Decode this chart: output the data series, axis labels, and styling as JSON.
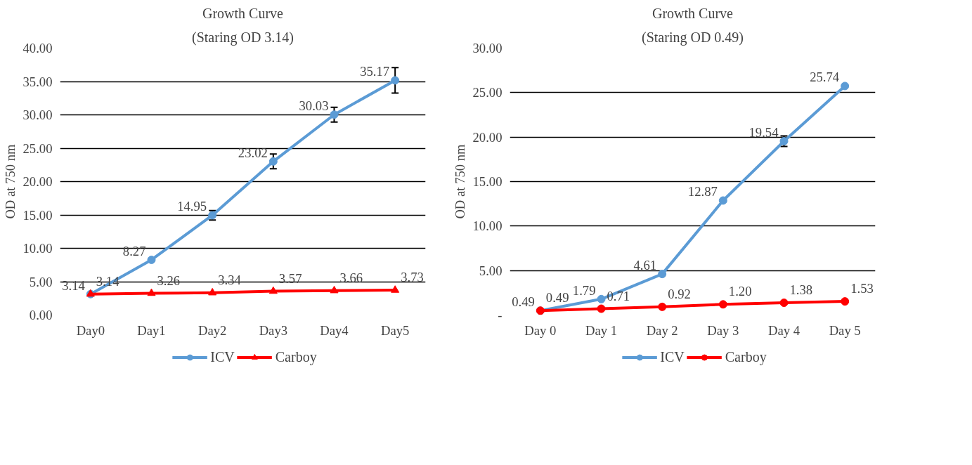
{
  "chart_data": [
    {
      "type": "line",
      "title": "Growth Curve",
      "subtitle": "(Staring OD 3.14)",
      "ylabel": "OD at 750 nm",
      "categories": [
        "Day0",
        "Day1",
        "Day2",
        "Day3",
        "Day4",
        "Day5"
      ],
      "ylim": [
        0,
        40
      ],
      "yticks": [
        {
          "value": 0,
          "label": "0.00"
        },
        {
          "value": 5,
          "label": "5.00"
        },
        {
          "value": 10,
          "label": "10.00"
        },
        {
          "value": 15,
          "label": "15.00"
        },
        {
          "value": 20,
          "label": "20.00"
        },
        {
          "value": 25,
          "label": "25.00"
        },
        {
          "value": 30,
          "label": "30.00"
        },
        {
          "value": 35,
          "label": "35.00"
        },
        {
          "value": 40,
          "label": "40.00"
        }
      ],
      "grid": "y",
      "legend": "bottom",
      "series": [
        {
          "name": "ICV",
          "color": "#5b9bd5",
          "marker": "circle",
          "values": [
            3.14,
            8.27,
            14.95,
            23.02,
            30.03,
            35.17
          ],
          "errors": [
            null,
            null,
            0.7,
            1.1,
            1.1,
            1.9
          ],
          "value_labels": [
            "3.14",
            "8.27",
            "14.95",
            "23.02",
            "30.03",
            "35.17"
          ]
        },
        {
          "name": "Carboy",
          "color": "#ff0000",
          "marker": "triangle",
          "values": [
            3.14,
            3.26,
            3.34,
            3.57,
            3.66,
            3.73
          ],
          "value_labels": [
            "3.14",
            "3.26",
            "3.34",
            "3.57",
            "3.66",
            "3.73"
          ]
        }
      ]
    },
    {
      "type": "line",
      "title": "Growth Curve",
      "subtitle": "(Staring OD 0.49)",
      "ylabel": "OD at 750 nm",
      "categories": [
        "Day 0",
        "Day 1",
        "Day 2",
        "Day 3",
        "Day 4",
        "Day 5"
      ],
      "ylim": [
        0,
        30
      ],
      "yticks": [
        {
          "value": 0,
          "label": "-"
        },
        {
          "value": 5,
          "label": "5.00"
        },
        {
          "value": 10,
          "label": "10.00"
        },
        {
          "value": 15,
          "label": "15.00"
        },
        {
          "value": 20,
          "label": "20.00"
        },
        {
          "value": 25,
          "label": "25.00"
        },
        {
          "value": 30,
          "label": "30.00"
        }
      ],
      "grid": "y",
      "legend": "bottom",
      "series": [
        {
          "name": "ICV",
          "color": "#5b9bd5",
          "marker": "circle",
          "values": [
            0.49,
            1.79,
            4.61,
            12.87,
            19.54,
            25.74
          ],
          "errors": [
            null,
            null,
            null,
            null,
            0.6,
            null
          ],
          "value_labels": [
            "0.49",
            "1.79",
            "4.61",
            "12.87",
            "19.54",
            "25.74"
          ]
        },
        {
          "name": "Carboy",
          "color": "#ff0000",
          "marker": "circle",
          "values": [
            0.49,
            0.71,
            0.92,
            1.2,
            1.38,
            1.53
          ],
          "value_labels": [
            "0.49",
            "0.71",
            "0.92",
            "1.20",
            "1.38",
            "1.53"
          ]
        }
      ]
    }
  ]
}
